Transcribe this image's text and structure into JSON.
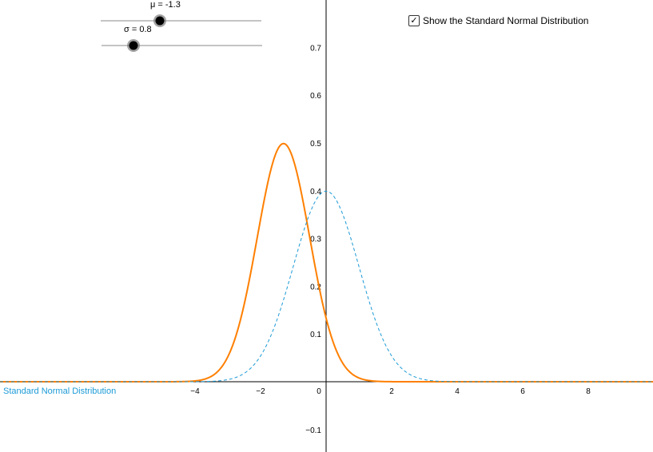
{
  "sliders": {
    "mu": {
      "label": "μ = -1.3",
      "value": -1.3,
      "min": -5,
      "max": 5
    },
    "sigma": {
      "label": "σ = 0.8",
      "value": 0.8,
      "min": 0,
      "max": 5
    }
  },
  "checkbox": {
    "label": "Show the Standard Normal Distribution",
    "checked": true
  },
  "colors": {
    "custom_curve": "#ff7f00",
    "standard_curve": "#1b9ad6",
    "axis": "#000000",
    "slider_track": "#888888"
  },
  "chart_data": {
    "type": "line",
    "x_range": [
      -10,
      10
    ],
    "y_range": [
      -0.15,
      0.8
    ],
    "x_ticks": [
      "−4",
      "−2",
      "0",
      "2",
      "4",
      "6",
      "8"
    ],
    "x_tick_values": [
      -4,
      -2,
      0,
      2,
      4,
      6,
      8
    ],
    "y_ticks": [
      "−0.1",
      "0.1",
      "0.2",
      "0.3",
      "0.4",
      "0.5",
      "0.6",
      "0.7"
    ],
    "y_tick_values": [
      -0.1,
      0.1,
      0.2,
      0.3,
      0.4,
      0.5,
      0.6,
      0.7
    ],
    "series": [
      {
        "kind": "normal",
        "mu": -1.3,
        "sigma": 0.8,
        "style": "solid"
      },
      {
        "name": "Standard Normal Distribution",
        "kind": "normal",
        "mu": 0,
        "sigma": 1,
        "style": "dashed"
      }
    ],
    "grid": false
  }
}
